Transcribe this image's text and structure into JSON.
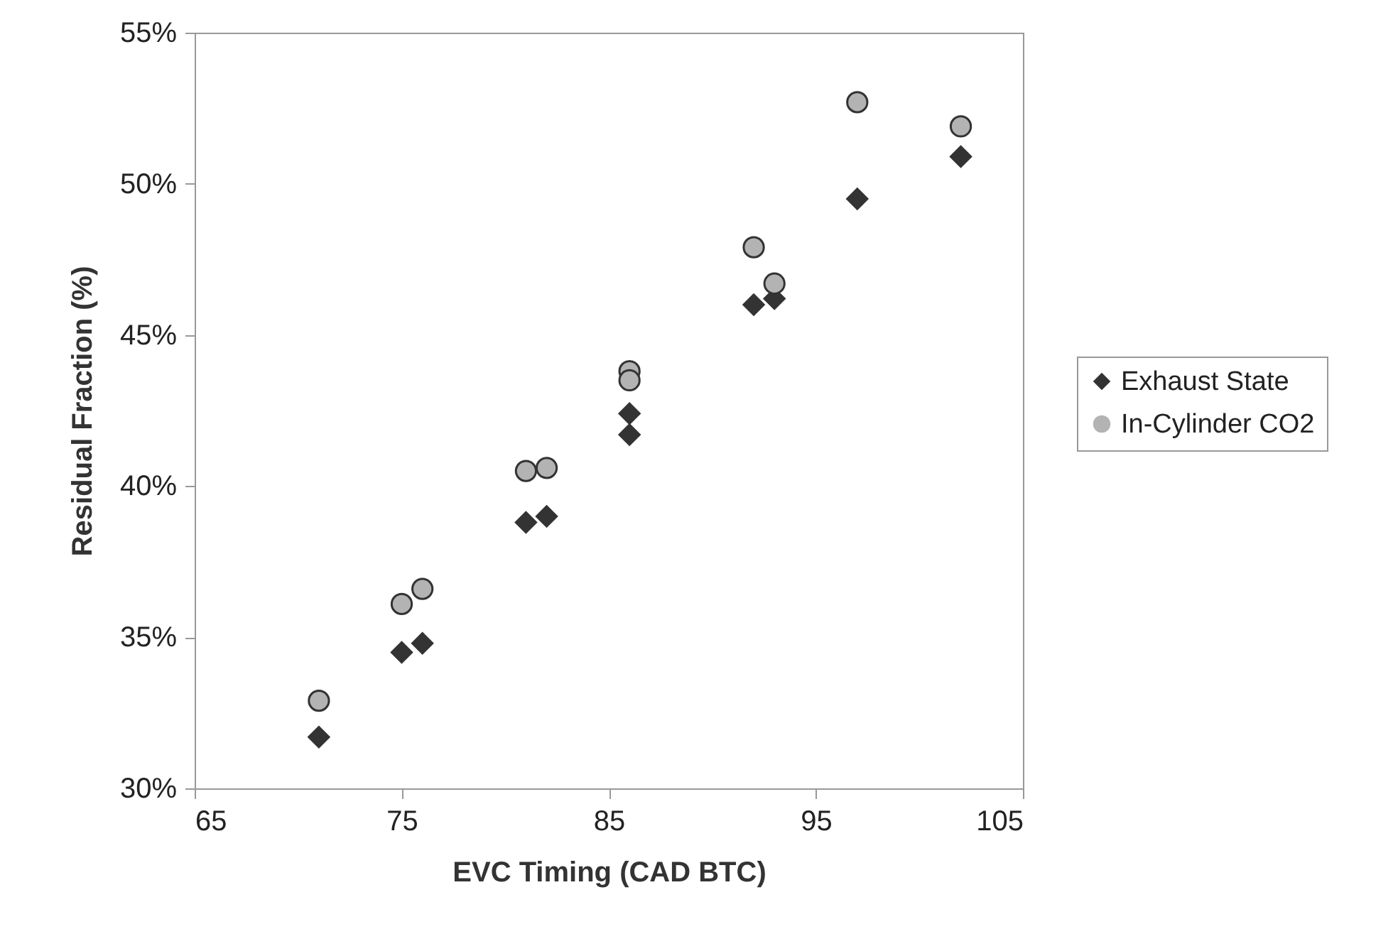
{
  "chart_data": {
    "type": "scatter",
    "xlabel": "EVC Timing (CAD BTC)",
    "ylabel": "Residual Fraction (%)",
    "xlim": [
      65,
      105
    ],
    "xticks": [
      65,
      75,
      85,
      95,
      105
    ],
    "ylim": [
      30,
      55
    ],
    "yticks": [
      {
        "value": 30,
        "label": "30%"
      },
      {
        "value": 35,
        "label": "35%"
      },
      {
        "value": 40,
        "label": "40%"
      },
      {
        "value": 45,
        "label": "45%"
      },
      {
        "value": 50,
        "label": "50%"
      },
      {
        "value": 55,
        "label": "55%"
      }
    ],
    "grid": false,
    "legend": "right",
    "series": [
      {
        "name": "Exhaust State",
        "color": "#333333",
        "marker": "diamond",
        "x": [
          71,
          75,
          76,
          81,
          82,
          86,
          86,
          92,
          93,
          97,
          102
        ],
        "values": [
          31.7,
          34.5,
          34.8,
          38.8,
          39.0,
          42.4,
          41.7,
          46.0,
          46.2,
          49.5,
          50.9
        ]
      },
      {
        "name": "In-Cylinder CO2",
        "color": "#b3b3b3",
        "marker": "circle",
        "x": [
          71,
          75,
          76,
          81,
          82,
          86,
          86,
          92,
          93,
          97,
          102
        ],
        "values": [
          32.9,
          36.1,
          36.6,
          40.5,
          40.6,
          43.8,
          43.5,
          47.9,
          46.7,
          52.7,
          51.9
        ]
      }
    ]
  }
}
